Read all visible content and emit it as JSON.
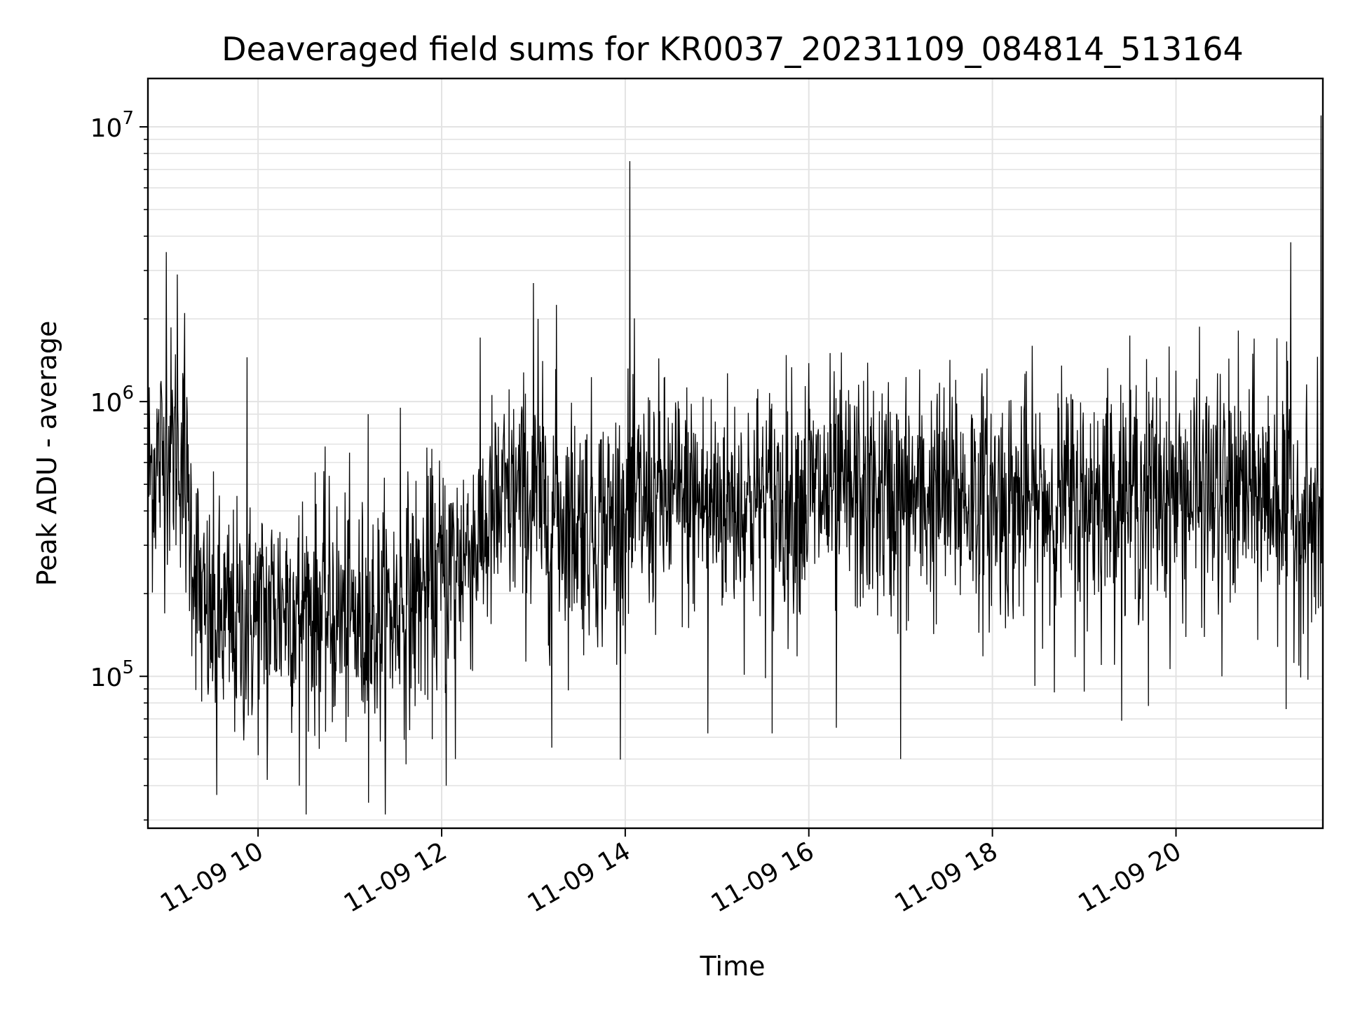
{
  "chart_data": {
    "type": "line",
    "title": "Deaveraged field sums for KR0037_20231109_084814_513164",
    "xlabel": "Time",
    "ylabel": "Peak ADU - average",
    "x_tick_labels": [
      "11-09 10",
      "11-09 12",
      "11-09 14",
      "11-09 16",
      "11-09 18",
      "11-09 20"
    ],
    "x_tick_values_hours": [
      10,
      12,
      14,
      16,
      18,
      20
    ],
    "xlim_hours": [
      8.8,
      21.6
    ],
    "y_scale": "log",
    "ylim": [
      28000,
      15000000
    ],
    "y_tick_labels": [
      {
        "base": "10",
        "exp": "5",
        "value": 100000
      },
      {
        "base": "10",
        "exp": "6",
        "value": 1000000
      },
      {
        "base": "10",
        "exp": "7",
        "value": 10000000
      }
    ],
    "grid": true,
    "line_color": "#000000",
    "grid_color": "#e3e3e3",
    "trend_hours": [
      8.8,
      9.0,
      9.15,
      9.4,
      9.8,
      10.3,
      10.8,
      11.2,
      11.6,
      12.0,
      12.4,
      12.8,
      13.3,
      13.8,
      14.3,
      14.8,
      15.5,
      16.2,
      17.0,
      17.8,
      18.5,
      19.2,
      19.9,
      20.6,
      21.1,
      21.6
    ],
    "trend_values": [
      550000,
      650000,
      700000,
      160000,
      150000,
      190000,
      170000,
      150000,
      180000,
      230000,
      320000,
      450000,
      380000,
      360000,
      440000,
      430000,
      430000,
      460000,
      440000,
      450000,
      420000,
      460000,
      470000,
      460000,
      450000,
      320000
    ],
    "spikes": [
      {
        "x": 9.0,
        "y": 3500000
      },
      {
        "x": 9.12,
        "y": 2900000
      },
      {
        "x": 9.2,
        "y": 2100000
      },
      {
        "x": 9.55,
        "y": 37000
      },
      {
        "x": 9.88,
        "y": 1450000
      },
      {
        "x": 10.1,
        "y": 42000
      },
      {
        "x": 10.45,
        "y": 40000
      },
      {
        "x": 11.2,
        "y": 900000
      },
      {
        "x": 11.55,
        "y": 950000
      },
      {
        "x": 12.05,
        "y": 40000
      },
      {
        "x": 12.15,
        "y": 50000
      },
      {
        "x": 13.0,
        "y": 2700000
      },
      {
        "x": 13.05,
        "y": 2000000
      },
      {
        "x": 13.25,
        "y": 2250000
      },
      {
        "x": 13.2,
        "y": 55000
      },
      {
        "x": 14.05,
        "y": 7500000
      },
      {
        "x": 14.9,
        "y": 62000
      },
      {
        "x": 15.6,
        "y": 62000
      },
      {
        "x": 16.0,
        "y": 1380000
      },
      {
        "x": 16.3,
        "y": 65000
      },
      {
        "x": 17.0,
        "y": 50000
      },
      {
        "x": 17.6,
        "y": 1200000
      },
      {
        "x": 19.0,
        "y": 88000
      },
      {
        "x": 19.7,
        "y": 78000
      },
      {
        "x": 20.5,
        "y": 100000
      },
      {
        "x": 21.1,
        "y": 1700000
      },
      {
        "x": 21.2,
        "y": 76000
      },
      {
        "x": 21.25,
        "y": 3800000
      },
      {
        "x": 21.58,
        "y": 11000000
      }
    ],
    "noise_sigma_decades": 0.22,
    "sample_count": 2600
  }
}
